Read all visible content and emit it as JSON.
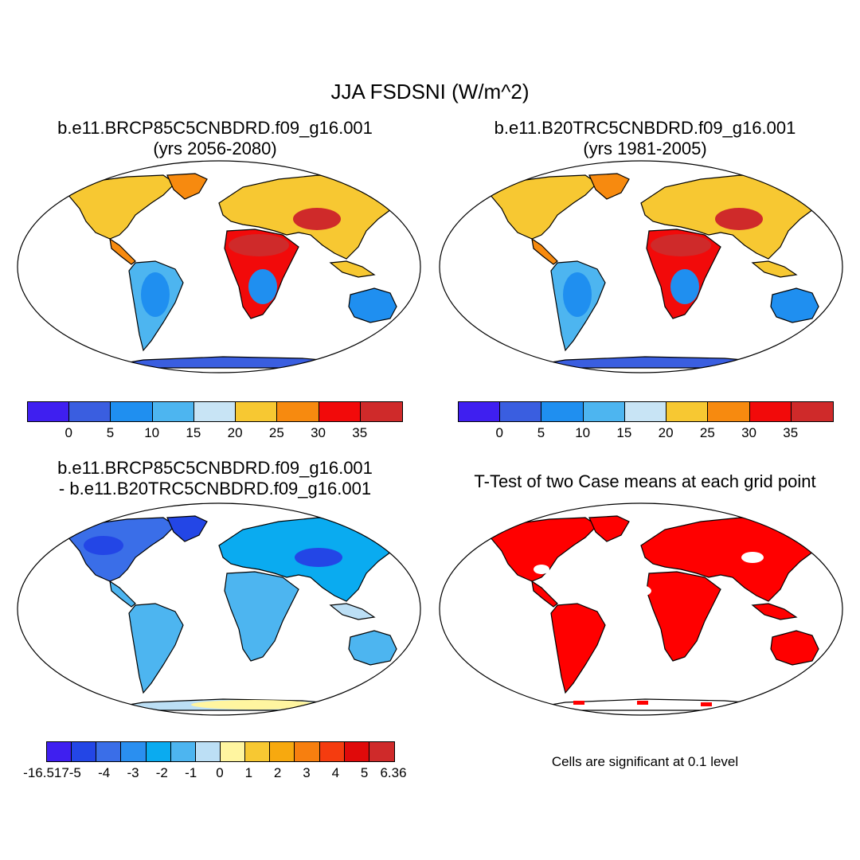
{
  "title": "JJA FSDSNI (W/m^2)",
  "panels": {
    "top_left": {
      "line1": "b.e11.BRCP85C5CNBDRD.f09_g16.001",
      "line2": "(yrs 2056-2080)"
    },
    "top_right": {
      "line1": "b.e11.B20TRC5CNBDRD.f09_g16.001",
      "line2": "(yrs 1981-2005)"
    },
    "bottom_left": {
      "line1": "b.e11.BRCP85C5CNBDRD.f09_g16.001",
      "line2": "- b.e11.B20TRC5CNBDRD.f09_g16.001"
    },
    "bottom_right": {
      "line1": "T-Test of two Case means at each grid point"
    }
  },
  "colorbar_fields": {
    "colors": [
      "#3f1ff0",
      "#3a5ee0",
      "#1f8ff0",
      "#4db5f0",
      "#c8e4f5",
      "#f7c832",
      "#f78a0f",
      "#f20a0a",
      "#cf2a2a"
    ],
    "labels": [
      "0",
      "5",
      "10",
      "15",
      "20",
      "25",
      "30",
      "35"
    ]
  },
  "colorbar_diff": {
    "colors": [
      "#3f1ff0",
      "#2346e6",
      "#3a6ee8",
      "#2a8ff0",
      "#0aabf0",
      "#4db5f0",
      "#bcdff5",
      "#fff5a0",
      "#f7c832",
      "#f7a90f",
      "#f77f0f",
      "#f53c0f",
      "#e00a0a",
      "#cf2a2a"
    ],
    "labels": [
      "-16.517",
      "-5",
      "-4",
      "-3",
      "-2",
      "-1",
      "0",
      "1",
      "2",
      "3",
      "4",
      "5",
      "6.36"
    ]
  },
  "significance_color": "#ff0000",
  "note": "Cells are significant at 0.1 level"
}
